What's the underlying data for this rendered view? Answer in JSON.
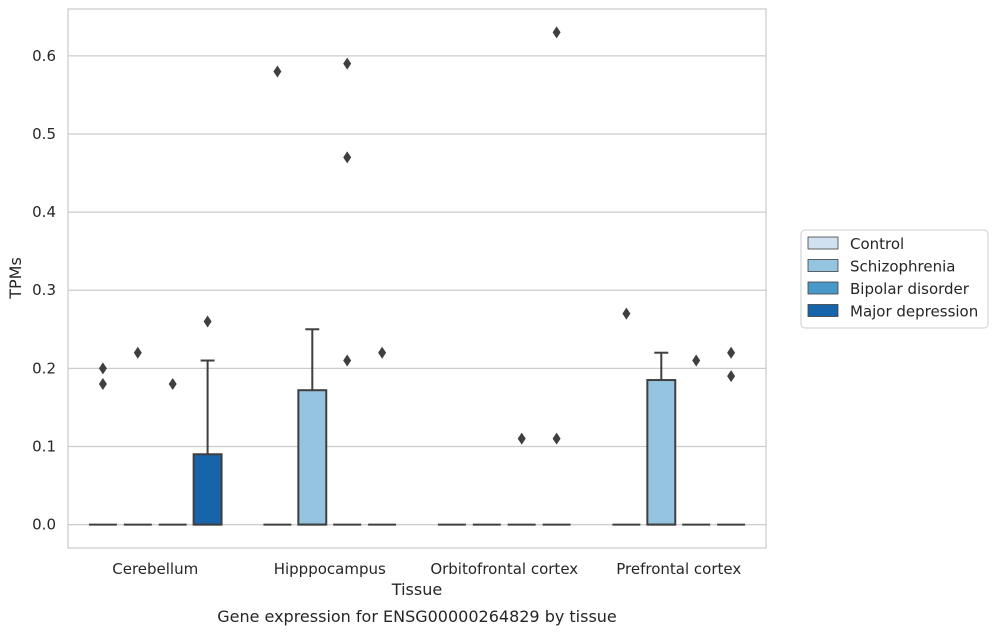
{
  "chart_data": {
    "type": "box",
    "xlabel": "Tissue",
    "ylabel": "TPMs",
    "caption": "Gene expression for ENSG00000264829 by tissue",
    "categories": [
      "Cerebellum",
      "Hipppocampus",
      "Orbitofrontal cortex",
      "Prefrontal cortex"
    ],
    "ylim": [
      -0.03,
      0.66
    ],
    "yticks": [
      "0.0",
      "0.1",
      "0.2",
      "0.3",
      "0.4",
      "0.5",
      "0.6"
    ],
    "ytick_values": [
      0.0,
      0.1,
      0.2,
      0.3,
      0.4,
      0.5,
      0.6
    ],
    "grid": "horizontal",
    "legend_position": "right",
    "series": [
      {
        "name": "Control",
        "color": "#d0e1f2",
        "boxes": [
          {
            "category": "Cerebellum",
            "q1": 0,
            "median": 0,
            "q3": 0,
            "whisker_low": 0,
            "whisker_high": 0,
            "outliers": [
              0.18,
              0.2
            ]
          },
          {
            "category": "Hipppocampus",
            "q1": 0,
            "median": 0,
            "q3": 0,
            "whisker_low": 0,
            "whisker_high": 0,
            "outliers": [
              0.58
            ]
          },
          {
            "category": "Orbitofrontal cortex",
            "q1": 0,
            "median": 0,
            "q3": 0,
            "whisker_low": 0,
            "whisker_high": 0,
            "outliers": []
          },
          {
            "category": "Prefrontal cortex",
            "q1": 0,
            "median": 0,
            "q3": 0,
            "whisker_low": 0,
            "whisker_high": 0,
            "outliers": [
              0.27
            ]
          }
        ]
      },
      {
        "name": "Schizophrenia",
        "color": "#94c4df",
        "boxes": [
          {
            "category": "Cerebellum",
            "q1": 0,
            "median": 0,
            "q3": 0,
            "whisker_low": 0,
            "whisker_high": 0,
            "outliers": [
              0.22
            ]
          },
          {
            "category": "Hipppocampus",
            "q1": 0,
            "median": 0,
            "q3": 0.172,
            "whisker_low": 0,
            "whisker_high": 0.25,
            "outliers": []
          },
          {
            "category": "Orbitofrontal cortex",
            "q1": 0,
            "median": 0,
            "q3": 0,
            "whisker_low": 0,
            "whisker_high": 0,
            "outliers": []
          },
          {
            "category": "Prefrontal cortex",
            "q1": 0,
            "median": 0,
            "q3": 0.185,
            "whisker_low": 0,
            "whisker_high": 0.22,
            "outliers": []
          }
        ]
      },
      {
        "name": "Bipolar disorder",
        "color": "#4a98c9",
        "boxes": [
          {
            "category": "Cerebellum",
            "q1": 0,
            "median": 0,
            "q3": 0,
            "whisker_low": 0,
            "whisker_high": 0,
            "outliers": [
              0.18
            ]
          },
          {
            "category": "Hipppocampus",
            "q1": 0,
            "median": 0,
            "q3": 0,
            "whisker_low": 0,
            "whisker_high": 0,
            "outliers": [
              0.59,
              0.47,
              0.21
            ]
          },
          {
            "category": "Orbitofrontal cortex",
            "q1": 0,
            "median": 0,
            "q3": 0,
            "whisker_low": 0,
            "whisker_high": 0,
            "outliers": [
              0.11
            ]
          },
          {
            "category": "Prefrontal cortex",
            "q1": 0,
            "median": 0,
            "q3": 0,
            "whisker_low": 0,
            "whisker_high": 0,
            "outliers": [
              0.21
            ]
          }
        ]
      },
      {
        "name": "Major depression",
        "color": "#1764ab",
        "boxes": [
          {
            "category": "Cerebellum",
            "q1": 0,
            "median": 0,
            "q3": 0.09,
            "whisker_low": 0,
            "whisker_high": 0.21,
            "outliers": [
              0.26
            ]
          },
          {
            "category": "Hipppocampus",
            "q1": 0,
            "median": 0,
            "q3": 0,
            "whisker_low": 0,
            "whisker_high": 0,
            "outliers": [
              0.22
            ]
          },
          {
            "category": "Orbitofrontal cortex",
            "q1": 0,
            "median": 0,
            "q3": 0,
            "whisker_low": 0,
            "whisker_high": 0,
            "outliers": [
              0.63,
              0.11
            ]
          },
          {
            "category": "Prefrontal cortex",
            "q1": 0,
            "median": 0,
            "q3": 0,
            "whisker_low": 0,
            "whisker_high": 0,
            "outliers": [
              0.22,
              0.19
            ]
          }
        ]
      }
    ]
  },
  "colors": {
    "grid": "#cccccc",
    "frame": "#cccccc",
    "box_edge": "#3f3f3f",
    "text": "#262626"
  }
}
